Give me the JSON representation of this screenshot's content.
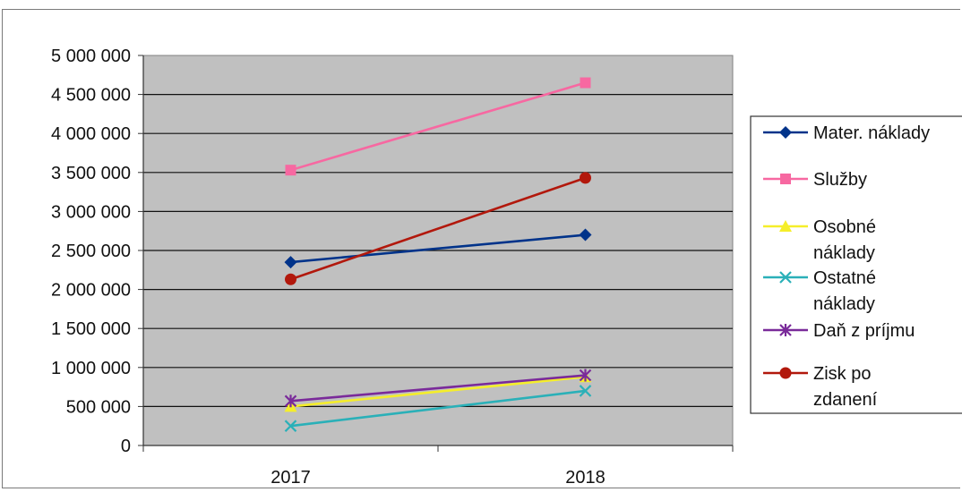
{
  "chart_data": {
    "type": "line",
    "title": "",
    "xlabel": "",
    "ylabel": "",
    "categories": [
      "2017",
      "2018"
    ],
    "ylim": [
      0,
      5000000
    ],
    "ytick_step": 500000,
    "ytick_labels": [
      "0",
      "500 000",
      "1 000 000",
      "1 500 000",
      "2 000 000",
      "2 500 000",
      "3 000 000",
      "3 500 000",
      "4 000 000",
      "4 500 000",
      "5 000 000"
    ],
    "grid": true,
    "plot_background": "#c0c0c0",
    "legend_position": "right",
    "series": [
      {
        "name": "Mater. náklady",
        "legend_lines": [
          "Mater. náklady"
        ],
        "values": [
          2350000,
          2700000
        ],
        "color": "#00338a",
        "marker": "diamond"
      },
      {
        "name": "Služby",
        "legend_lines": [
          "Služby"
        ],
        "values": [
          3530000,
          4650000
        ],
        "color": "#f768a1",
        "marker": "square"
      },
      {
        "name": "Osobné náklady",
        "legend_lines": [
          "Osobné",
          "náklady"
        ],
        "values": [
          500000,
          880000
        ],
        "color": "#f5ee2a",
        "marker": "triangle"
      },
      {
        "name": "Ostatné náklady",
        "legend_lines": [
          "Ostatné",
          "náklady"
        ],
        "values": [
          250000,
          700000
        ],
        "color": "#2ab0b8",
        "marker": "x"
      },
      {
        "name": "Daň z príjmu",
        "legend_lines": [
          "Daň z príjmu"
        ],
        "values": [
          570000,
          900000
        ],
        "color": "#7a2a9a",
        "marker": "star"
      },
      {
        "name": "Zisk po zdanení",
        "legend_lines": [
          "Zisk po",
          "zdanení"
        ],
        "values": [
          2130000,
          3430000
        ],
        "color": "#b2180c",
        "marker": "circle"
      }
    ]
  }
}
